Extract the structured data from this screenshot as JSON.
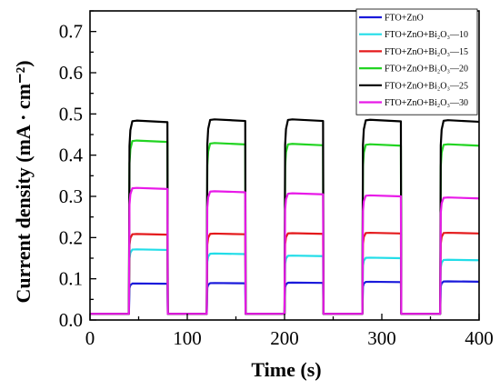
{
  "chart_data": {
    "type": "line",
    "title": "",
    "xlabel": "Time (s)",
    "ylabel": "Current density (mA · cm⁻²)",
    "xlim": [
      0,
      400
    ],
    "ylim": [
      0,
      0.75
    ],
    "xticks": [
      "0",
      "100",
      "200",
      "300",
      "400"
    ],
    "yticks": [
      "0.0",
      "0.1",
      "0.2",
      "0.3",
      "0.4",
      "0.5",
      "0.6",
      "0.7"
    ],
    "grid": false,
    "legend_position": "top-right",
    "light_cycles": [
      [
        40,
        80
      ],
      [
        120,
        160
      ],
      [
        200,
        240
      ],
      [
        280,
        320
      ],
      [
        360,
        400
      ]
    ],
    "dark_current": 0.015,
    "series": [
      {
        "name": "FTO+ZnO",
        "color": "#1a1adb",
        "on_values": [
          0.088,
          0.089,
          0.09,
          0.092,
          0.093
        ]
      },
      {
        "name": "FTO+ZnO+Bi₂O₃—10",
        "color": "#22dde8",
        "on_values": [
          0.17,
          0.16,
          0.155,
          0.15,
          0.145
        ]
      },
      {
        "name": "FTO+ZnO+Bi₂O₃—15",
        "color": "#e41a1c",
        "on_values": [
          0.207,
          0.208,
          0.209,
          0.21,
          0.21
        ]
      },
      {
        "name": "FTO+ZnO+Bi₂O₃—20",
        "color": "#22d422",
        "on_values": [
          0.432,
          0.426,
          0.424,
          0.423,
          0.423
        ]
      },
      {
        "name": "FTO+ZnO+Bi₂O₃—25",
        "color": "#000000",
        "on_values": [
          0.48,
          0.483,
          0.483,
          0.482,
          0.481
        ]
      },
      {
        "name": "FTO+ZnO+Bi₂O₃—30",
        "color": "#e81ae8",
        "on_values": [
          0.318,
          0.31,
          0.305,
          0.3,
          0.295
        ]
      }
    ]
  }
}
